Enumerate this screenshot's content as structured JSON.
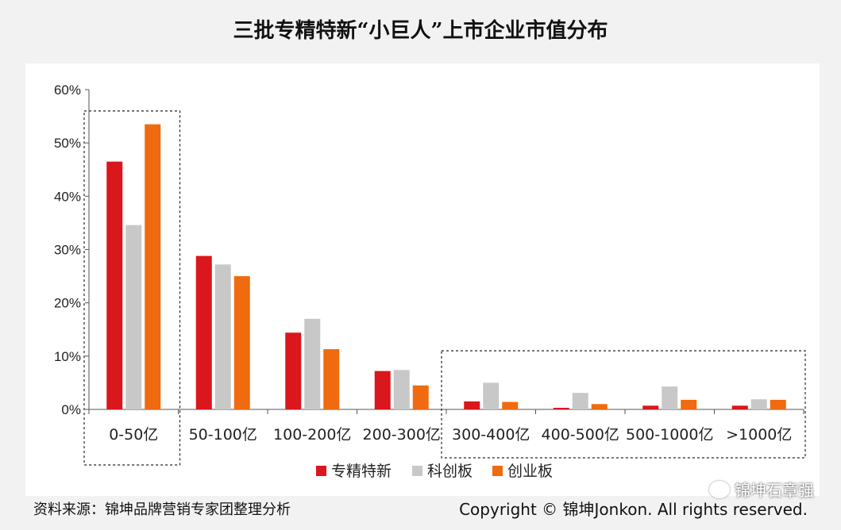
{
  "title": "三批专精特新“小巨人”上市企业市值分布",
  "footer": {
    "source": "资料来源：锦坤品牌营销专家团整理分析",
    "copyright": "Copyright © 锦坤Jonkon. All rights reserved.",
    "watermark": "锦坤石章强"
  },
  "chart_data": {
    "type": "bar",
    "categories": [
      "0-50亿",
      "50-100亿",
      "100-200亿",
      "200-300亿",
      "300-400亿",
      "400-500亿",
      "500-1000亿",
      ">1000亿"
    ],
    "series": [
      {
        "name": "专精特新",
        "color": "#d9171c",
        "values": [
          46.5,
          28.8,
          14.4,
          7.2,
          1.5,
          0.3,
          0.7,
          0.7
        ]
      },
      {
        "name": "科创板",
        "color": "#c8c8c8",
        "values": [
          34.6,
          27.2,
          17.0,
          7.4,
          5.0,
          3.1,
          4.3,
          1.9
        ]
      },
      {
        "name": "创业板",
        "color": "#f06a0f",
        "values": [
          53.5,
          25.0,
          11.3,
          4.5,
          1.4,
          1.0,
          1.8,
          1.8
        ]
      }
    ],
    "ylim": [
      0,
      60
    ],
    "yticks": [
      "0%",
      "10%",
      "20%",
      "30%",
      "40%",
      "50%",
      "60%"
    ],
    "ytick_values": [
      0,
      10,
      20,
      30,
      40,
      50,
      60
    ],
    "legend_position": "bottom",
    "highlight_groups": [
      [
        0,
        0
      ],
      [
        4,
        7
      ]
    ]
  }
}
